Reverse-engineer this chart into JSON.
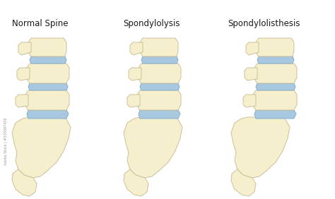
{
  "background_color": "#ffffff",
  "bone_color": "#f5efcd",
  "bone_edge_color": "#ccc09a",
  "disc_color": "#a8c8e0",
  "disc_edge_color": "#85aec8",
  "titles": [
    "Normal Spine",
    "Spondylolysis",
    "Spondylolisthesis"
  ],
  "title_fontsize": 8.5,
  "title_color": "#1a1a1a",
  "watermark": "Adobe Stock | #535097459"
}
